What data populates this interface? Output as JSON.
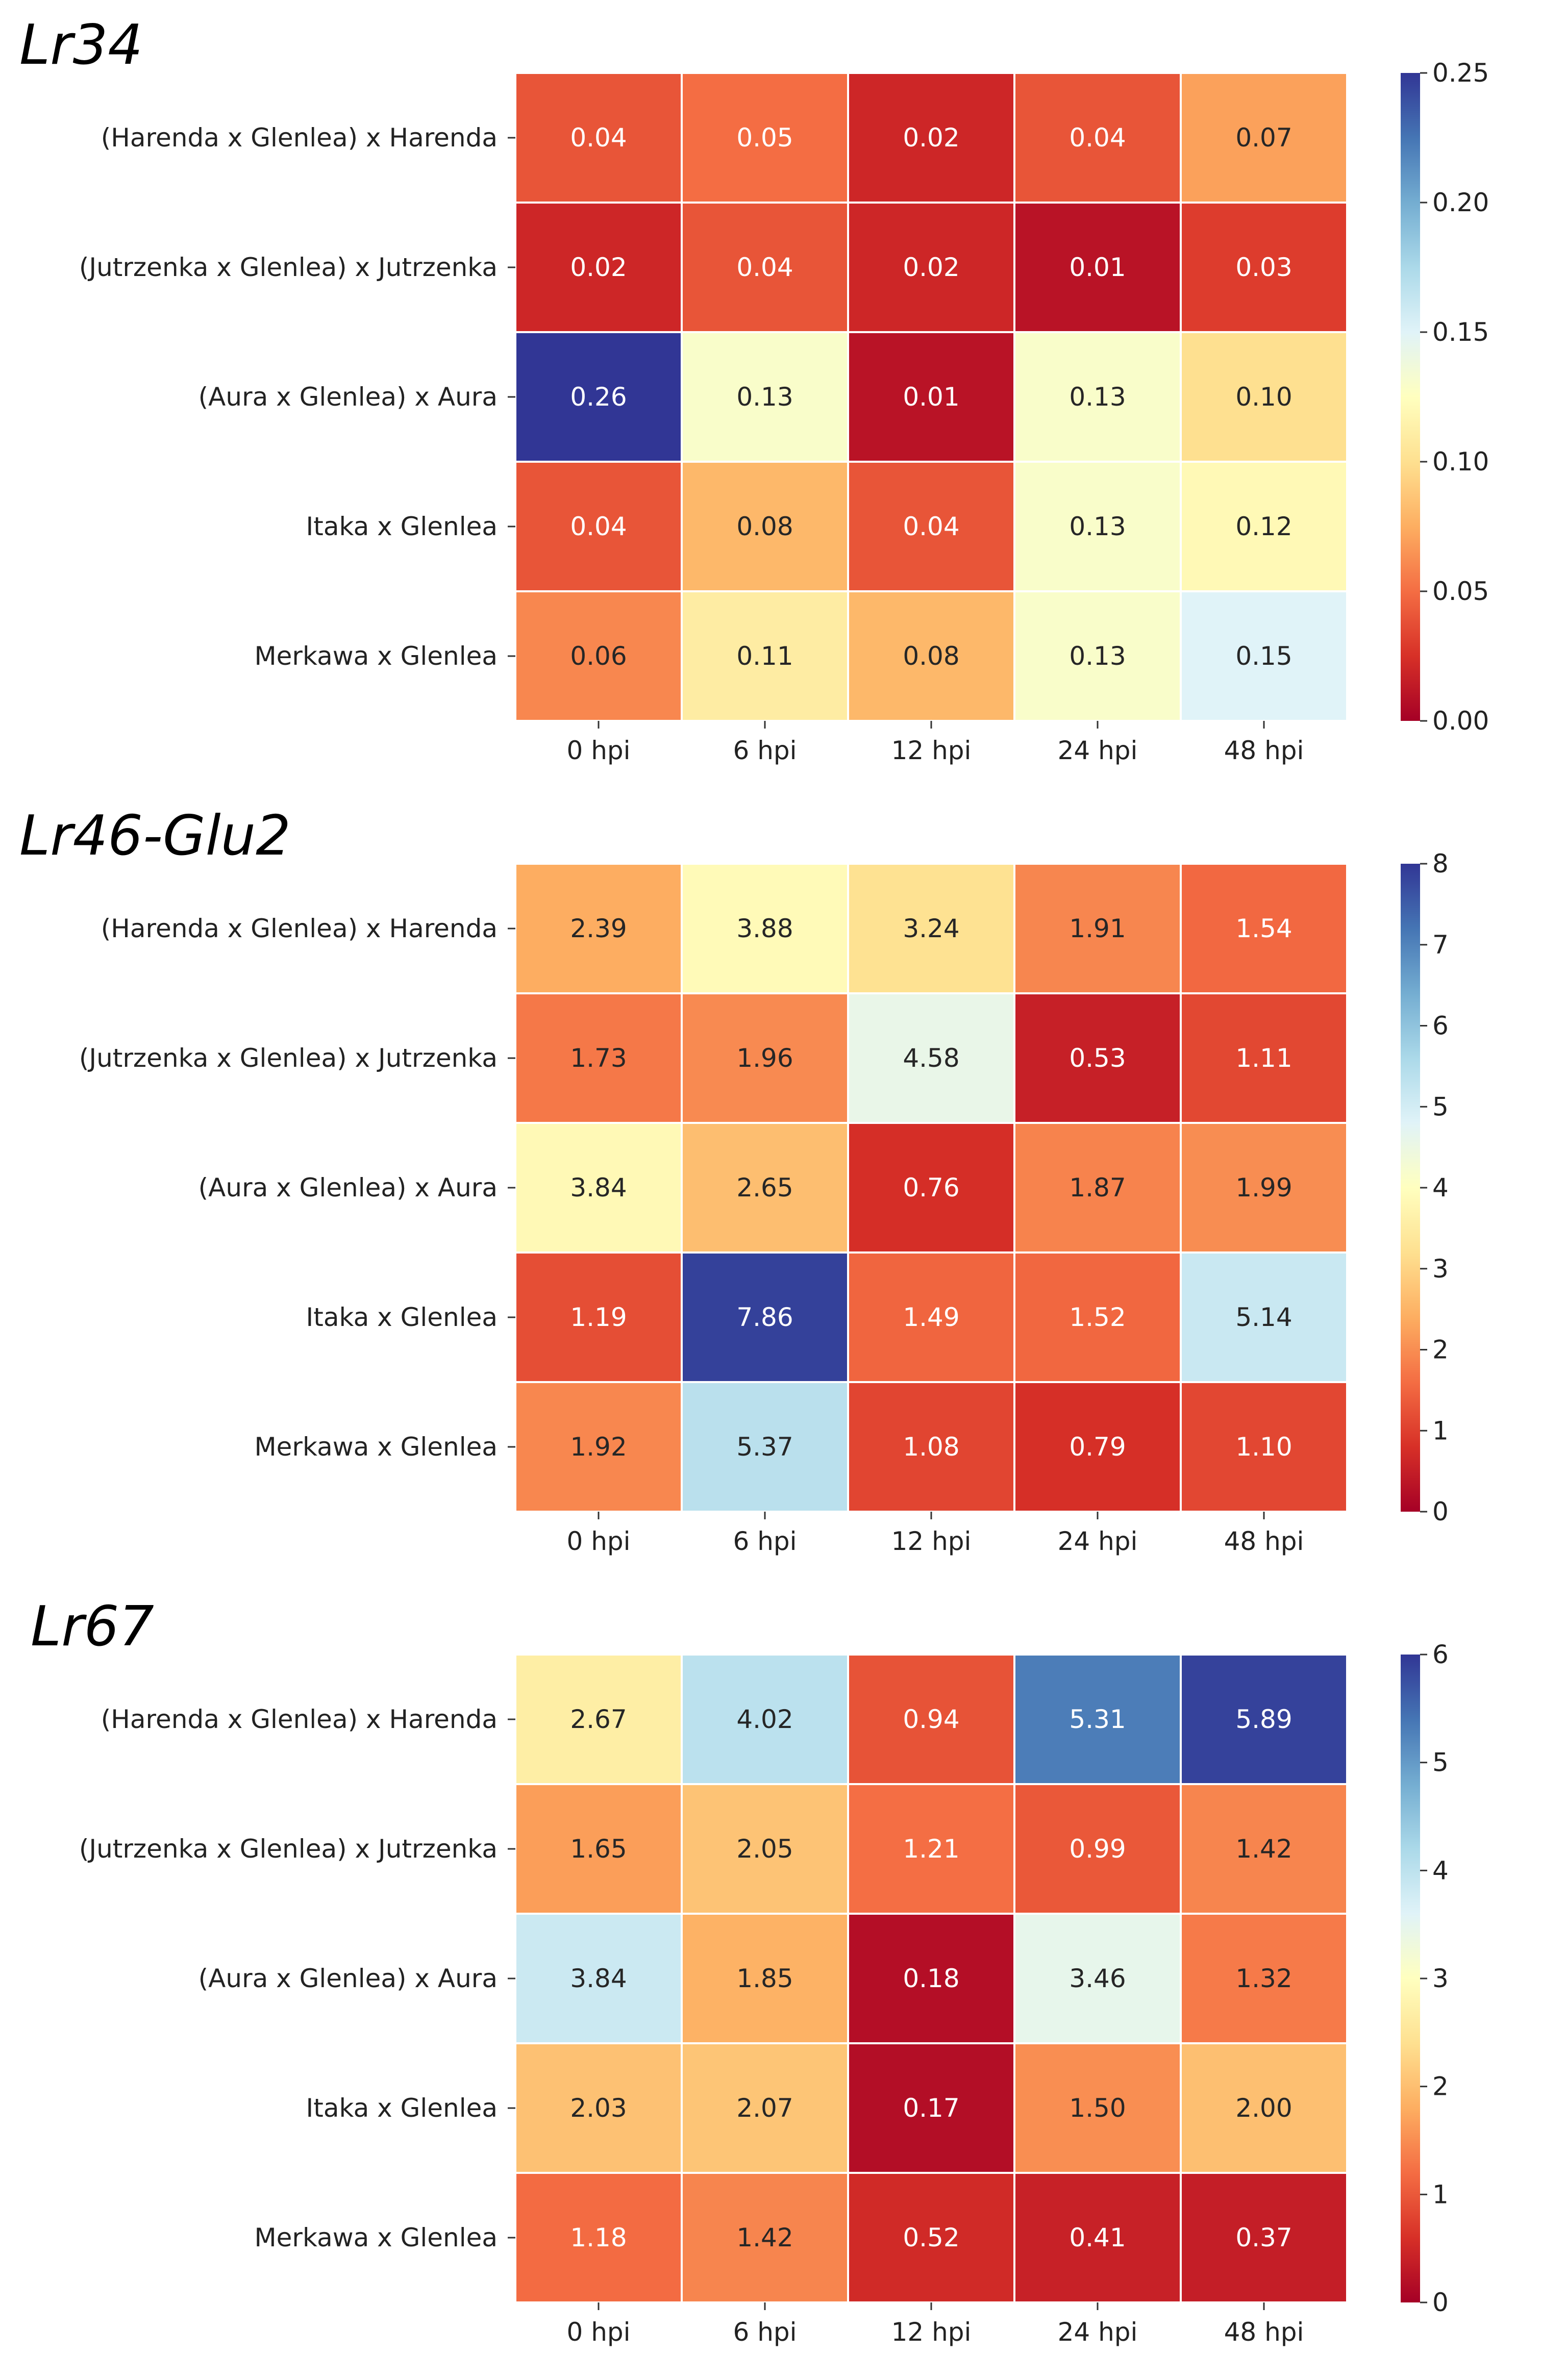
{
  "chart_data": [
    {
      "type": "heatmap",
      "title": "Lr34",
      "rows": [
        "(Harenda x Glenlea) x Harenda",
        "(Jutrzenka x Glenlea) x Jutrzenka",
        "(Aura x Glenlea) x Aura",
        "Itaka x Glenlea",
        "Merkawa x Glenlea"
      ],
      "columns": [
        "0 hpi",
        "6 hpi",
        "12 hpi",
        "24 hpi",
        "48 hpi"
      ],
      "values": [
        [
          0.04,
          0.05,
          0.02,
          0.04,
          0.07
        ],
        [
          0.02,
          0.04,
          0.02,
          0.01,
          0.03
        ],
        [
          0.26,
          0.13,
          0.01,
          0.13,
          0.1
        ],
        [
          0.04,
          0.08,
          0.04,
          0.13,
          0.12
        ],
        [
          0.06,
          0.11,
          0.08,
          0.13,
          0.15
        ]
      ],
      "labels": [
        [
          "0.04",
          "0.05",
          "0.02",
          "0.04",
          "0.07"
        ],
        [
          "0.02",
          "0.04",
          "0.02",
          "0.01",
          "0.03"
        ],
        [
          "0.26",
          "0.13",
          "0.01",
          "0.13",
          "0.10"
        ],
        [
          "0.04",
          "0.08",
          "0.04",
          "0.13",
          "0.12"
        ],
        [
          "0.06",
          "0.11",
          "0.08",
          "0.13",
          "0.15"
        ]
      ],
      "vmin": 0,
      "vmax": 0.25,
      "colorbar_ticks": [
        "0.00",
        "0.05",
        "0.10",
        "0.15",
        "0.20",
        "0.25"
      ],
      "colormap": "RdYlBu"
    },
    {
      "type": "heatmap",
      "title": "Lr46-Glu2",
      "rows": [
        "(Harenda x Glenlea) x Harenda",
        "(Jutrzenka x Glenlea) x Jutrzenka",
        "(Aura x Glenlea) x Aura",
        "Itaka x Glenlea",
        "Merkawa x Glenlea"
      ],
      "columns": [
        "0 hpi",
        "6 hpi",
        "12 hpi",
        "24 hpi",
        "48 hpi"
      ],
      "values": [
        [
          2.39,
          3.88,
          3.24,
          1.91,
          1.54
        ],
        [
          1.73,
          1.96,
          4.58,
          0.53,
          1.11
        ],
        [
          3.84,
          2.65,
          0.76,
          1.87,
          1.99
        ],
        [
          1.19,
          7.86,
          1.49,
          1.52,
          5.14
        ],
        [
          1.92,
          5.37,
          1.08,
          0.79,
          1.1
        ]
      ],
      "labels": [
        [
          "2.39",
          "3.88",
          "3.24",
          "1.91",
          "1.54"
        ],
        [
          "1.73",
          "1.96",
          "4.58",
          "0.53",
          "1.11"
        ],
        [
          "3.84",
          "2.65",
          "0.76",
          "1.87",
          "1.99"
        ],
        [
          "1.19",
          "7.86",
          "1.49",
          "1.52",
          "5.14"
        ],
        [
          "1.92",
          "5.37",
          "1.08",
          "0.79",
          "1.10"
        ]
      ],
      "vmin": 0,
      "vmax": 8,
      "colorbar_ticks": [
        "0",
        "1",
        "2",
        "3",
        "4",
        "5",
        "6",
        "7",
        "8"
      ],
      "colormap": "RdYlBu"
    },
    {
      "type": "heatmap",
      "title": "Lr67",
      "rows": [
        "(Harenda x Glenlea) x Harenda",
        "(Jutrzenka x Glenlea) x Jutrzenka",
        "(Aura x Glenlea) x Aura",
        "Itaka x Glenlea",
        "Merkawa x Glenlea"
      ],
      "columns": [
        "0 hpi",
        "6 hpi",
        "12 hpi",
        "24 hpi",
        "48 hpi"
      ],
      "values": [
        [
          2.67,
          4.02,
          0.94,
          5.31,
          5.89
        ],
        [
          1.65,
          2.05,
          1.21,
          0.99,
          1.42
        ],
        [
          3.84,
          1.85,
          0.18,
          3.46,
          1.32
        ],
        [
          2.03,
          2.07,
          0.17,
          1.5,
          2.0
        ],
        [
          1.18,
          1.42,
          0.52,
          0.41,
          0.37
        ]
      ],
      "labels": [
        [
          "2.67",
          "4.02",
          "0.94",
          "5.31",
          "5.89"
        ],
        [
          "1.65",
          "2.05",
          "1.21",
          "0.99",
          "1.42"
        ],
        [
          "3.84",
          "1.85",
          "0.18",
          "3.46",
          "1.32"
        ],
        [
          "2.03",
          "2.07",
          "0.17",
          "1.50",
          "2.00"
        ],
        [
          "1.18",
          "1.42",
          "0.52",
          "0.41",
          "0.37"
        ]
      ],
      "vmin": 0,
      "vmax": 6,
      "colorbar_ticks": [
        "0",
        "1",
        "2",
        "3",
        "4",
        "5",
        "6"
      ],
      "colormap": "RdYlBu"
    }
  ]
}
